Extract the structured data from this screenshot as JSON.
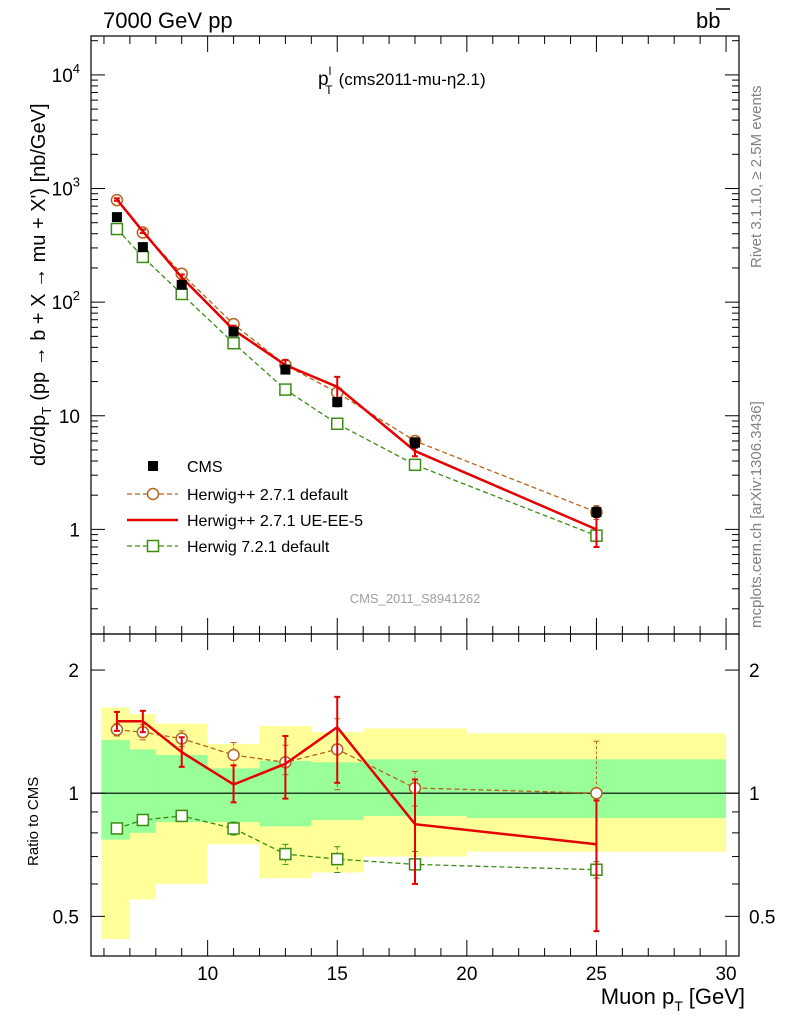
{
  "header": {
    "left": "7000 GeV pp",
    "right_main": "b",
    "right_bar": "b"
  },
  "side_text": {
    "rivet": "Rivet 3.1.10, ≥ 2.5M events",
    "mcplots": "mcplots.cern.ch [arXiv:1306.3436]"
  },
  "chart_data": [
    {
      "type": "line",
      "panel": "main",
      "title_main": "p",
      "title_sup": "l",
      "title_sub": "T",
      "title_rest": "(cms2011-mu-η2.1)",
      "watermark": "CMS_2011_S8941262",
      "ylabel_a": "dσ/dp",
      "ylabel_sub": "T",
      "ylabel_b": "(pp → b + X → mu + X') [nb/GeV]",
      "yscale": "log",
      "ylim": [
        0.12,
        22000
      ],
      "xlim": [
        5.5,
        30.5
      ],
      "y_ticks": [
        {
          "v": 1,
          "base": "1",
          "exp": ""
        },
        {
          "v": 10,
          "base": "10",
          "exp": ""
        },
        {
          "v": 100,
          "base": "10",
          "exp": "2"
        },
        {
          "v": 1000,
          "base": "10",
          "exp": "3"
        },
        {
          "v": 10000,
          "base": "10",
          "exp": "4"
        }
      ],
      "legend_position": "left-lower",
      "series": [
        {
          "name": "CMS",
          "color": "#000000",
          "style": "data",
          "x": [
            6.5,
            7.5,
            9,
            11,
            13,
            15,
            18,
            25
          ],
          "y": [
            560,
            305,
            142,
            55,
            25.5,
            13.2,
            5.8,
            1.42
          ],
          "err": [
            40,
            22,
            10,
            4,
            2,
            1.2,
            0.6,
            0.15
          ]
        },
        {
          "name": "Herwig++ 2.7.1 default",
          "color": "#b4641e",
          "style": "circle-dashed",
          "x": [
            6.5,
            7.5,
            9,
            11,
            13,
            15,
            18,
            25
          ],
          "y": [
            790,
            410,
            178,
            64,
            28,
            16,
            6,
            1.42
          ],
          "err": [
            15,
            10,
            6,
            3,
            1.5,
            1.2,
            0.5,
            0.2
          ]
        },
        {
          "name": "Herwig++ 2.7.1 UE-EE-5",
          "color": "#e60000",
          "style": "solid",
          "x": [
            6.5,
            7.5,
            9,
            11,
            13,
            15,
            18,
            25
          ],
          "y": [
            800,
            420,
            165,
            57,
            28,
            18,
            4.9,
            1.0
          ],
          "err": [
            20,
            15,
            10,
            5,
            3,
            4,
            0.5,
            0.3
          ]
        },
        {
          "name": "Herwig 7.2.1 default",
          "color": "#3c8c14",
          "style": "square-dashed",
          "x": [
            6.5,
            7.5,
            9,
            11,
            13,
            15,
            18,
            25
          ],
          "y": [
            440,
            250,
            118,
            43.5,
            17,
            8.5,
            3.7,
            0.88
          ],
          "err": [
            10,
            8,
            4,
            2,
            1.2,
            0.6,
            0.3,
            0.08
          ]
        }
      ]
    },
    {
      "type": "line",
      "panel": "ratio",
      "xlabel_a": "Muon p",
      "xlabel_sub": "T",
      "xlabel_b": "[GeV]",
      "ylabel": "Ratio to CMS",
      "yscale": "log",
      "ylim": [
        0.4,
        2.45
      ],
      "xlim": [
        5.5,
        30.5
      ],
      "x_ticks": [
        10,
        15,
        20,
        25,
        30
      ],
      "y_ticks": [
        "0.5",
        "1",
        "2"
      ],
      "bands": {
        "edges": [
          5.9,
          7.0,
          8.0,
          10.0,
          12.0,
          14.0,
          16.0,
          20.0,
          30.0
        ],
        "yellow_lo": [
          0.44,
          0.55,
          0.6,
          0.75,
          0.62,
          0.64,
          0.7,
          0.72
        ],
        "yellow_hi": [
          1.62,
          1.56,
          1.48,
          1.32,
          1.46,
          1.41,
          1.44,
          1.4
        ],
        "green_lo": [
          0.77,
          0.8,
          0.85,
          0.85,
          0.83,
          0.86,
          0.88,
          0.87
        ],
        "green_hi": [
          1.35,
          1.28,
          1.24,
          1.15,
          1.2,
          1.19,
          1.21,
          1.21
        ]
      },
      "series": [
        {
          "name": "Herwig++ 2.7.1 default",
          "color": "#b4641e",
          "style": "circle-dashed",
          "x": [
            6.5,
            7.5,
            9,
            11,
            13,
            15,
            18,
            25
          ],
          "y": [
            1.43,
            1.41,
            1.36,
            1.24,
            1.19,
            1.28,
            1.03,
            1.0
          ],
          "err_lo": [
            0.05,
            0.06,
            0.06,
            0.07,
            0.08,
            0.26,
            0.1,
            0.35
          ],
          "err_hi": [
            0.05,
            0.06,
            0.06,
            0.09,
            0.12,
            0.24,
            0.1,
            0.34
          ]
        },
        {
          "name": "Herwig++ 2.7.1 UE-EE-5",
          "color": "#e60000",
          "style": "solid",
          "x": [
            6.5,
            7.5,
            9,
            11,
            13,
            15,
            18,
            25
          ],
          "y": [
            1.5,
            1.5,
            1.26,
            1.05,
            1.18,
            1.45,
            0.84,
            0.75
          ],
          "err_lo": [
            0.08,
            0.09,
            0.1,
            0.1,
            0.21,
            0.39,
            0.24,
            0.29
          ],
          "err_hi": [
            0.08,
            0.09,
            0.11,
            0.12,
            0.2,
            0.27,
            0.24,
            0.21
          ]
        },
        {
          "name": "Herwig 7.2.1 default",
          "color": "#3c8c14",
          "style": "square-dashed",
          "x": [
            6.5,
            7.5,
            9,
            11,
            13,
            15,
            18,
            25
          ],
          "y": [
            0.82,
            0.86,
            0.88,
            0.82,
            0.71,
            0.69,
            0.67,
            0.65
          ],
          "err_lo": [
            0.02,
            0.02,
            0.02,
            0.03,
            0.04,
            0.05,
            0.07,
            0.03
          ],
          "err_hi": [
            0.02,
            0.02,
            0.02,
            0.03,
            0.04,
            0.05,
            0.05,
            0.03
          ]
        }
      ]
    }
  ]
}
